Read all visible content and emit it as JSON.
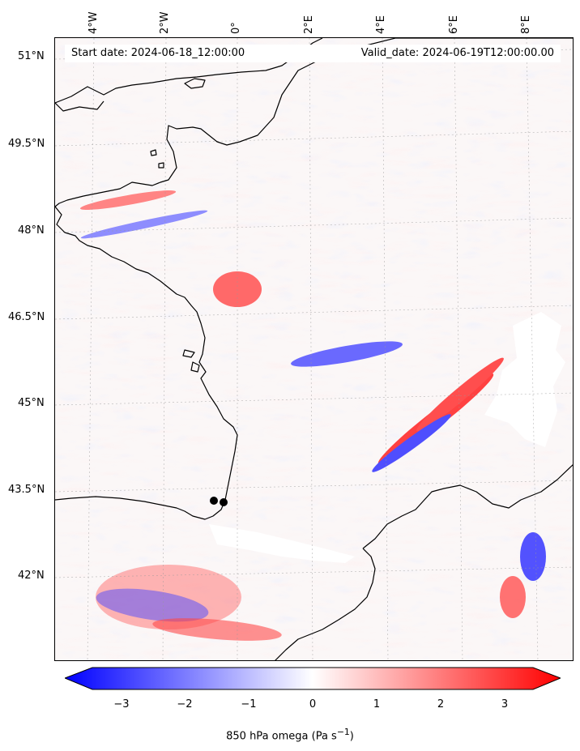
{
  "header": {
    "start_text": "Start date: 2024-06-18_12:00:00",
    "valid_text": "Valid_date: 2024-06-19T12:00:00.00"
  },
  "map": {
    "lon_labels": [
      "4°W",
      "2°W",
      "0°",
      "2°E",
      "4°E",
      "6°E",
      "8°E"
    ],
    "lat_labels": [
      "51°N",
      "49.5°N",
      "48°N",
      "46.5°N",
      "45°N",
      "43.5°N",
      "42°N"
    ],
    "colors": {
      "positive": "#ff0000",
      "negative": "#0000ff",
      "neutral": "#ffffff",
      "coast": "#000000"
    }
  },
  "colorbar": {
    "ticks": [
      "−3",
      "−2",
      "−1",
      "0",
      "1",
      "2",
      "3"
    ],
    "label_main": "850 hPa omega (Pa s",
    "label_sup": "−1",
    "label_end": ")",
    "range": [
      -3.5,
      3.5
    ]
  }
}
